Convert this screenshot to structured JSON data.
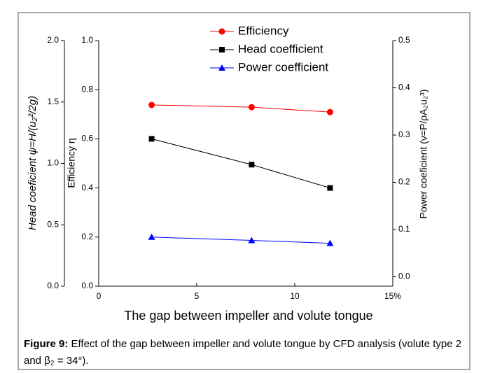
{
  "chart_data": {
    "type": "line",
    "xlabel": "The gap between impeller and volute tongue",
    "ylabel": "Efficiency η",
    "y3label": "Head coeficient ψ=H/(u₂²/2g)",
    "y2label": "Power coeficient (ν=P/ρA₂u₂³)",
    "x": [
      2.7,
      7.8,
      11.8
    ],
    "series": [
      {
        "name": "Efficiency",
        "color": "#ff0000",
        "marker": "circle",
        "axis": "y",
        "values": [
          0.738,
          0.729,
          0.709
        ]
      },
      {
        "name": "Head coefficient",
        "color": "#000000",
        "marker": "square",
        "axis": "y3",
        "values": [
          1.2,
          0.99,
          0.8
        ]
      },
      {
        "name": "Power coefficient",
        "color": "#0000ff",
        "marker": "triangle",
        "axis": "y2",
        "values": [
          0.084,
          0.077,
          0.071
        ]
      }
    ],
    "xlim": [
      0,
      15
    ],
    "xticks": [
      0,
      5,
      10,
      {
        "value": 15,
        "label": "15%"
      }
    ],
    "ylim": [
      0,
      1
    ],
    "yticks": [
      {
        "value": 0,
        "label": "0.0"
      },
      0.2,
      0.4,
      0.6,
      0.8,
      {
        "value": 1,
        "label": "1.0"
      }
    ],
    "y3lim": [
      0,
      2
    ],
    "y3ticks": [
      {
        "value": 0,
        "label": "0.0"
      },
      0.5,
      {
        "value": 1,
        "label": "1.0"
      },
      1.5,
      {
        "value": 2,
        "label": "2.0"
      }
    ],
    "y2lim": [
      -0.02,
      0.5
    ],
    "y2ticks": [
      {
        "value": 0,
        "label": "0.0"
      },
      0.1,
      0.2,
      0.3,
      0.4,
      0.5
    ],
    "grid": false,
    "legend": "top"
  },
  "caption": {
    "label": "Figure 9:",
    "text": "Effect of the gap between impeller and volute tongue by CFD analysis (volute type 2 and β₂ = 34°)."
  }
}
